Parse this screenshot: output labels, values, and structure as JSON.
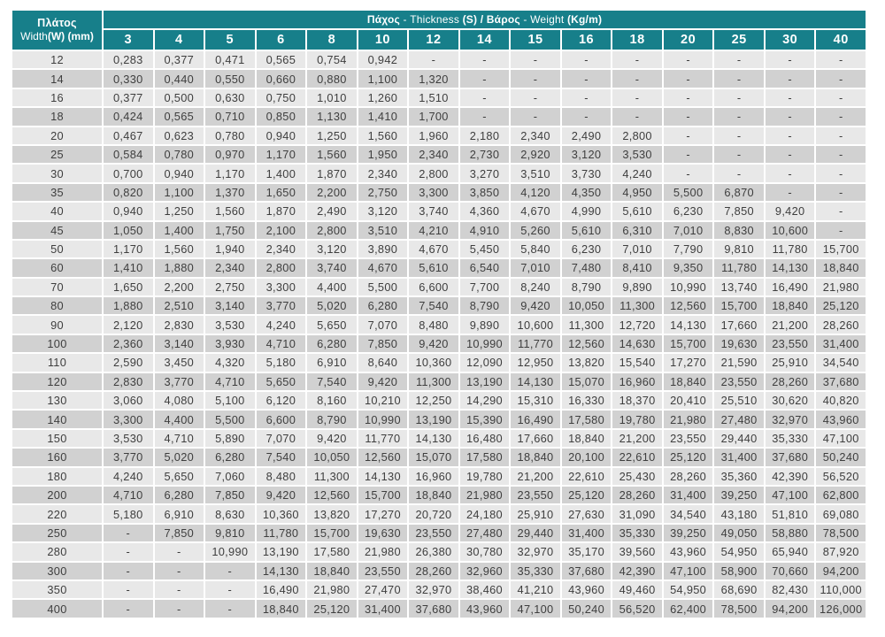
{
  "colors": {
    "header_teal": "#177f8a",
    "row_light": "#e8e8e8",
    "row_dark": "#d1d1d1",
    "cell_text": "#3e3e3e",
    "header_text": "#ffffff",
    "page_background": "#ffffff"
  },
  "table": {
    "corner_header": {
      "line1": "Πλάτος",
      "line2_segments": [
        {
          "text": "Width",
          "bold": false
        },
        {
          "text": "(W) (mm)",
          "bold": true
        }
      ]
    },
    "top_header_segments": [
      {
        "text": "Πάχος",
        "bold": true
      },
      {
        "text": " - Thickness ",
        "bold": false
      },
      {
        "text": "(S) / ",
        "bold": true
      },
      {
        "text": "Βάρος",
        "bold": true
      },
      {
        "text": " - Weight ",
        "bold": false
      },
      {
        "text": "(Kg/m)",
        "bold": true
      }
    ],
    "thickness_headers": [
      "3",
      "4",
      "5",
      "6",
      "8",
      "10",
      "12",
      "14",
      "15",
      "16",
      "18",
      "20",
      "25",
      "30",
      "40"
    ],
    "rows": [
      {
        "width": "12",
        "values": [
          "0,283",
          "0,377",
          "0,471",
          "0,565",
          "0,754",
          "0,942",
          "-",
          "-",
          "-",
          "-",
          "-",
          "-",
          "-",
          "-",
          "-"
        ]
      },
      {
        "width": "14",
        "values": [
          "0,330",
          "0,440",
          "0,550",
          "0,660",
          "0,880",
          "1,100",
          "1,320",
          "-",
          "-",
          "-",
          "-",
          "-",
          "-",
          "-",
          "-"
        ]
      },
      {
        "width": "16",
        "values": [
          "0,377",
          "0,500",
          "0,630",
          "0,750",
          "1,010",
          "1,260",
          "1,510",
          "-",
          "-",
          "-",
          "-",
          "-",
          "-",
          "-",
          "-"
        ]
      },
      {
        "width": "18",
        "values": [
          "0,424",
          "0,565",
          "0,710",
          "0,850",
          "1,130",
          "1,410",
          "1,700",
          "-",
          "-",
          "-",
          "-",
          "-",
          "-",
          "-",
          "-"
        ]
      },
      {
        "width": "20",
        "values": [
          "0,467",
          "0,623",
          "0,780",
          "0,940",
          "1,250",
          "1,560",
          "1,960",
          "2,180",
          "2,340",
          "2,490",
          "2,800",
          "-",
          "-",
          "-",
          "-"
        ]
      },
      {
        "width": "25",
        "values": [
          "0,584",
          "0,780",
          "0,970",
          "1,170",
          "1,560",
          "1,950",
          "2,340",
          "2,730",
          "2,920",
          "3,120",
          "3,530",
          "-",
          "-",
          "-",
          "-"
        ]
      },
      {
        "width": "30",
        "values": [
          "0,700",
          "0,940",
          "1,170",
          "1,400",
          "1,870",
          "2,340",
          "2,800",
          "3,270",
          "3,510",
          "3,730",
          "4,240",
          "-",
          "-",
          "-",
          "-"
        ]
      },
      {
        "width": "35",
        "values": [
          "0,820",
          "1,100",
          "1,370",
          "1,650",
          "2,200",
          "2,750",
          "3,300",
          "3,850",
          "4,120",
          "4,350",
          "4,950",
          "5,500",
          "6,870",
          "-",
          "-"
        ]
      },
      {
        "width": "40",
        "values": [
          "0,940",
          "1,250",
          "1,560",
          "1,870",
          "2,490",
          "3,120",
          "3,740",
          "4,360",
          "4,670",
          "4,990",
          "5,610",
          "6,230",
          "7,850",
          "9,420",
          "-"
        ]
      },
      {
        "width": "45",
        "values": [
          "1,050",
          "1,400",
          "1,750",
          "2,100",
          "2,800",
          "3,510",
          "4,210",
          "4,910",
          "5,260",
          "5,610",
          "6,310",
          "7,010",
          "8,830",
          "10,600",
          "-"
        ]
      },
      {
        "width": "50",
        "values": [
          "1,170",
          "1,560",
          "1,940",
          "2,340",
          "3,120",
          "3,890",
          "4,670",
          "5,450",
          "5,840",
          "6,230",
          "7,010",
          "7,790",
          "9,810",
          "11,780",
          "15,700"
        ]
      },
      {
        "width": "60",
        "values": [
          "1,410",
          "1,880",
          "2,340",
          "2,800",
          "3,740",
          "4,670",
          "5,610",
          "6,540",
          "7,010",
          "7,480",
          "8,410",
          "9,350",
          "11,780",
          "14,130",
          "18,840"
        ]
      },
      {
        "width": "70",
        "values": [
          "1,650",
          "2,200",
          "2,750",
          "3,300",
          "4,400",
          "5,500",
          "6,600",
          "7,700",
          "8,240",
          "8,790",
          "9,890",
          "10,990",
          "13,740",
          "16,490",
          "21,980"
        ]
      },
      {
        "width": "80",
        "values": [
          "1,880",
          "2,510",
          "3,140",
          "3,770",
          "5,020",
          "6,280",
          "7,540",
          "8,790",
          "9,420",
          "10,050",
          "11,300",
          "12,560",
          "15,700",
          "18,840",
          "25,120"
        ]
      },
      {
        "width": "90",
        "values": [
          "2,120",
          "2,830",
          "3,530",
          "4,240",
          "5,650",
          "7,070",
          "8,480",
          "9,890",
          "10,600",
          "11,300",
          "12,720",
          "14,130",
          "17,660",
          "21,200",
          "28,260"
        ]
      },
      {
        "width": "100",
        "values": [
          "2,360",
          "3,140",
          "3,930",
          "4,710",
          "6,280",
          "7,850",
          "9,420",
          "10,990",
          "11,770",
          "12,560",
          "14,630",
          "15,700",
          "19,630",
          "23,550",
          "31,400"
        ]
      },
      {
        "width": "110",
        "values": [
          "2,590",
          "3,450",
          "4,320",
          "5,180",
          "6,910",
          "8,640",
          "10,360",
          "12,090",
          "12,950",
          "13,820",
          "15,540",
          "17,270",
          "21,590",
          "25,910",
          "34,540"
        ]
      },
      {
        "width": "120",
        "values": [
          "2,830",
          "3,770",
          "4,710",
          "5,650",
          "7,540",
          "9,420",
          "11,300",
          "13,190",
          "14,130",
          "15,070",
          "16,960",
          "18,840",
          "23,550",
          "28,260",
          "37,680"
        ]
      },
      {
        "width": "130",
        "values": [
          "3,060",
          "4,080",
          "5,100",
          "6,120",
          "8,160",
          "10,210",
          "12,250",
          "14,290",
          "15,310",
          "16,330",
          "18,370",
          "20,410",
          "25,510",
          "30,620",
          "40,820"
        ]
      },
      {
        "width": "140",
        "values": [
          "3,300",
          "4,400",
          "5,500",
          "6,600",
          "8,790",
          "10,990",
          "13,190",
          "15,390",
          "16,490",
          "17,580",
          "19,780",
          "21,980",
          "27,480",
          "32,970",
          "43,960"
        ]
      },
      {
        "width": "150",
        "values": [
          "3,530",
          "4,710",
          "5,890",
          "7,070",
          "9,420",
          "11,770",
          "14,130",
          "16,480",
          "17,660",
          "18,840",
          "21,200",
          "23,550",
          "29,440",
          "35,330",
          "47,100"
        ]
      },
      {
        "width": "160",
        "values": [
          "3,770",
          "5,020",
          "6,280",
          "7,540",
          "10,050",
          "12,560",
          "15,070",
          "17,580",
          "18,840",
          "20,100",
          "22,610",
          "25,120",
          "31,400",
          "37,680",
          "50,240"
        ]
      },
      {
        "width": "180",
        "values": [
          "4,240",
          "5,650",
          "7,060",
          "8,480",
          "11,300",
          "14,130",
          "16,960",
          "19,780",
          "21,200",
          "22,610",
          "25,430",
          "28,260",
          "35,360",
          "42,390",
          "56,520"
        ]
      },
      {
        "width": "200",
        "values": [
          "4,710",
          "6,280",
          "7,850",
          "9,420",
          "12,560",
          "15,700",
          "18,840",
          "21,980",
          "23,550",
          "25,120",
          "28,260",
          "31,400",
          "39,250",
          "47,100",
          "62,800"
        ]
      },
      {
        "width": "220",
        "values": [
          "5,180",
          "6,910",
          "8,630",
          "10,360",
          "13,820",
          "17,270",
          "20,720",
          "24,180",
          "25,910",
          "27,630",
          "31,090",
          "34,540",
          "43,180",
          "51,810",
          "69,080"
        ]
      },
      {
        "width": "250",
        "values": [
          "-",
          "7,850",
          "9,810",
          "11,780",
          "15,700",
          "19,630",
          "23,550",
          "27,480",
          "29,440",
          "31,400",
          "35,330",
          "39,250",
          "49,050",
          "58,880",
          "78,500"
        ]
      },
      {
        "width": "280",
        "values": [
          "-",
          "-",
          "10,990",
          "13,190",
          "17,580",
          "21,980",
          "26,380",
          "30,780",
          "32,970",
          "35,170",
          "39,560",
          "43,960",
          "54,950",
          "65,940",
          "87,920"
        ]
      },
      {
        "width": "300",
        "values": [
          "-",
          "-",
          "-",
          "14,130",
          "18,840",
          "23,550",
          "28,260",
          "32,960",
          "35,330",
          "37,680",
          "42,390",
          "47,100",
          "58,900",
          "70,660",
          "94,200"
        ]
      },
      {
        "width": "350",
        "values": [
          "-",
          "-",
          "-",
          "16,490",
          "21,980",
          "27,470",
          "32,970",
          "38,460",
          "41,210",
          "43,960",
          "49,460",
          "54,950",
          "68,690",
          "82,430",
          "110,000"
        ]
      },
      {
        "width": "400",
        "values": [
          "-",
          "-",
          "-",
          "18,840",
          "25,120",
          "31,400",
          "37,680",
          "43,960",
          "47,100",
          "50,240",
          "56,520",
          "62,400",
          "78,500",
          "94,200",
          "126,000"
        ]
      }
    ]
  }
}
